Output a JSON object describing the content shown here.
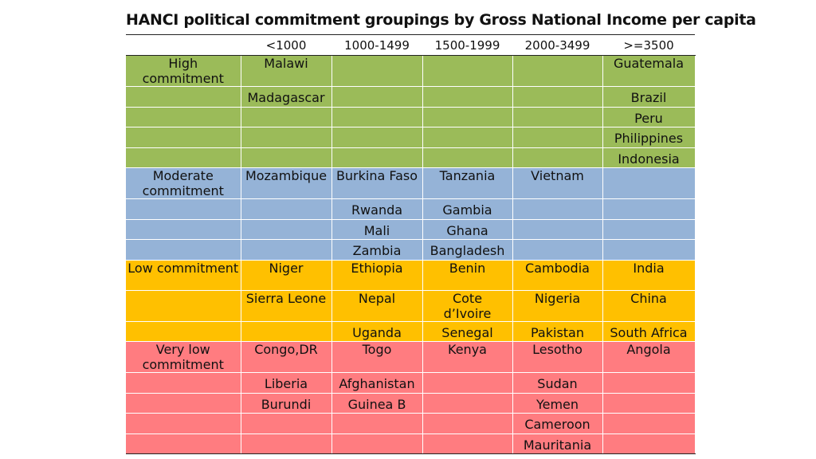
{
  "title": "HANCI political commitment groupings by  Gross National Income per capita",
  "colors": {
    "high": "#9bbb59",
    "moderate": "#95b3d7",
    "low": "#ffc000",
    "very_low": "#ff7c80"
  },
  "columns": [
    "",
    "<1000",
    "1000-1499",
    "1500-1999",
    "2000-3499",
    ">=3500"
  ],
  "groups": [
    {
      "label": "High commitment",
      "rows": [
        [
          "Malawi",
          "",
          "",
          "",
          "Guatemala"
        ],
        [
          "Madagascar",
          "",
          "",
          "",
          "Brazil"
        ],
        [
          "",
          "",
          "",
          "",
          "Peru"
        ],
        [
          "",
          "",
          "",
          "",
          "Philippines"
        ],
        [
          "",
          "",
          "",
          "",
          "Indonesia"
        ]
      ]
    },
    {
      "label": "Moderate commitment",
      "rows": [
        [
          "Mozambique",
          "Burkina Faso",
          "Tanzania",
          "Vietnam",
          ""
        ],
        [
          "",
          "Rwanda",
          "Gambia",
          "",
          ""
        ],
        [
          "",
          "Mali",
          "Ghana",
          "",
          ""
        ],
        [
          "",
          "Zambia",
          "Bangladesh",
          "",
          ""
        ]
      ]
    },
    {
      "label": "Low commitment",
      "rows": [
        [
          "Niger",
          "Ethiopia",
          "Benin",
          "Cambodia",
          "India"
        ],
        [
          "Sierra Leone",
          "Nepal",
          "Cote d’Ivoire",
          "Nigeria",
          "China"
        ],
        [
          "",
          "Uganda",
          "Senegal",
          "Pakistan",
          "South Africa"
        ]
      ]
    },
    {
      "label": "Very low commitment",
      "rows": [
        [
          "Congo,DR",
          "Togo",
          "Kenya",
          "Lesotho",
          "Angola"
        ],
        [
          "Liberia",
          "Afghanistan",
          "",
          "Sudan",
          ""
        ],
        [
          "Burundi",
          "Guinea B",
          "",
          "Yemen",
          ""
        ],
        [
          "",
          "",
          "",
          "Cameroon",
          ""
        ],
        [
          "",
          "",
          "",
          "Mauritania",
          ""
        ]
      ]
    }
  ]
}
